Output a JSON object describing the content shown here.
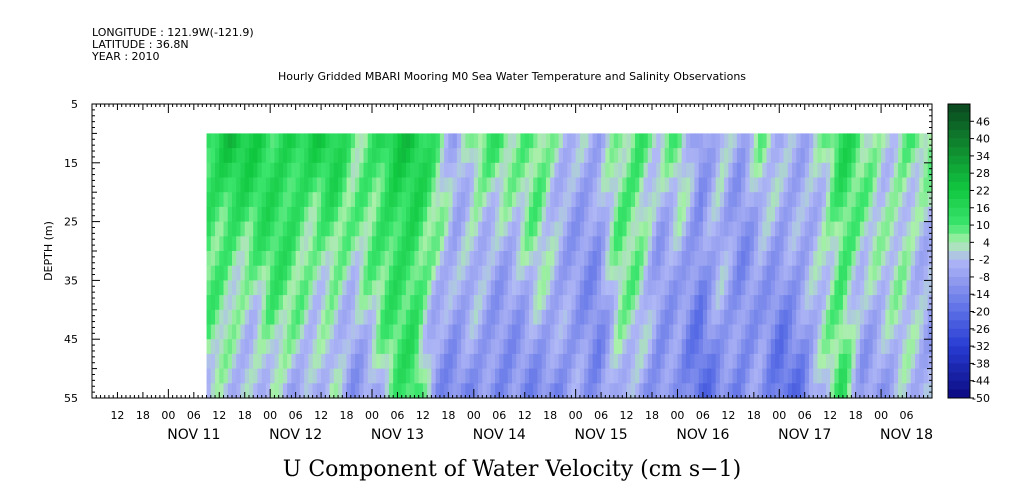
{
  "header": {
    "longitude": "LONGITUDE : 121.9W(-121.9)",
    "latitude": "LATITUDE : 36.8N",
    "year": "YEAR : 2010"
  },
  "chart_data": {
    "type": "heatmap",
    "title": "Hourly Gridded MBARI Mooring M0 Sea Water Temperature and Salinity Observations",
    "xlabel": "U Component of Water Velocity (cm s−1)",
    "ylabel": "DEPTH (m)",
    "x_start": "2010-11-10T06:00",
    "x_end": "2010-11-18T12:00",
    "data_start": "2010-11-11T09:00",
    "data_end": "2010-11-18T11:00",
    "hour_ticks": [
      "12",
      "18",
      "00",
      "06",
      "12",
      "18",
      "00",
      "06",
      "12",
      "18",
      "00",
      "06",
      "12",
      "18",
      "00",
      "06",
      "12",
      "18",
      "00",
      "06",
      "12",
      "18",
      "00",
      "06",
      "12",
      "18",
      "00",
      "06",
      "12",
      "18",
      "00",
      "06"
    ],
    "day_labels": [
      "NOV 11",
      "NOV 12",
      "NOV 13",
      "NOV 14",
      "NOV 15",
      "NOV 16",
      "NOV 17",
      "NOV 18"
    ],
    "ylim": [
      5,
      55
    ],
    "y_ticks": [
      5,
      15,
      25,
      35,
      45,
      55
    ],
    "data_depth_top": 10,
    "colorbar_levels": [
      "46",
      "40",
      "34",
      "28",
      "22",
      "16",
      "10",
      "4",
      "-2",
      "-8",
      "-14",
      "-20",
      "-26",
      "-32",
      "-38",
      "-44",
      "-50"
    ],
    "colorbar_range": [
      -50,
      52
    ],
    "colorbar_step": 3,
    "colors": {
      "strong_negative": "#0a0a80",
      "negative": "#5060e0",
      "weak_negative": "#a8b0f0",
      "weak_positive": "#a0f0a0",
      "positive": "#10e040",
      "strong_positive": "#0a5a20"
    },
    "field_profiles": [
      {
        "day": 11.4,
        "surface": 18,
        "bottom": -2
      },
      {
        "day": 11.6,
        "surface": 22,
        "bottom": -6
      },
      {
        "day": 11.8,
        "surface": 16,
        "bottom": -4
      },
      {
        "day": 12.0,
        "surface": 14,
        "bottom": 4
      },
      {
        "day": 12.2,
        "surface": 20,
        "bottom": -6
      },
      {
        "day": 12.4,
        "surface": 18,
        "bottom": -10
      },
      {
        "day": 12.6,
        "surface": 16,
        "bottom": 0
      },
      {
        "day": 12.8,
        "surface": 6,
        "bottom": -8
      },
      {
        "day": 13.0,
        "surface": 14,
        "bottom": -6
      },
      {
        "day": 13.2,
        "surface": 22,
        "bottom": 4
      },
      {
        "day": 13.4,
        "surface": 18,
        "bottom": 12
      },
      {
        "day": 13.6,
        "surface": 8,
        "bottom": -8
      },
      {
        "day": 13.8,
        "surface": -4,
        "bottom": -12
      },
      {
        "day": 14.0,
        "surface": 10,
        "bottom": -14
      },
      {
        "day": 14.2,
        "surface": 8,
        "bottom": -16
      },
      {
        "day": 14.4,
        "surface": 2,
        "bottom": -10
      },
      {
        "day": 14.6,
        "surface": 12,
        "bottom": -12
      },
      {
        "day": 14.8,
        "surface": 4,
        "bottom": -14
      },
      {
        "day": 15.0,
        "surface": -4,
        "bottom": -10
      },
      {
        "day": 15.2,
        "surface": -8,
        "bottom": -12
      },
      {
        "day": 15.4,
        "surface": 6,
        "bottom": 2
      },
      {
        "day": 15.6,
        "surface": 14,
        "bottom": -8
      },
      {
        "day": 15.8,
        "surface": 2,
        "bottom": -16
      },
      {
        "day": 16.0,
        "surface": 4,
        "bottom": -10
      },
      {
        "day": 16.2,
        "surface": -12,
        "bottom": -18
      },
      {
        "day": 16.4,
        "surface": 4,
        "bottom": -14
      },
      {
        "day": 16.6,
        "surface": -6,
        "bottom": -16
      },
      {
        "day": 16.8,
        "surface": 2,
        "bottom": -10
      },
      {
        "day": 17.0,
        "surface": -4,
        "bottom": -18
      },
      {
        "day": 17.2,
        "surface": -2,
        "bottom": -16
      },
      {
        "day": 17.4,
        "surface": 4,
        "bottom": -4
      },
      {
        "day": 17.6,
        "surface": 14,
        "bottom": 10
      },
      {
        "day": 17.8,
        "surface": 6,
        "bottom": -8
      },
      {
        "day": 18.0,
        "surface": 2,
        "bottom": -6
      },
      {
        "day": 18.2,
        "surface": 8,
        "bottom": -4
      },
      {
        "day": 18.46,
        "surface": 4,
        "bottom": -8
      }
    ]
  }
}
